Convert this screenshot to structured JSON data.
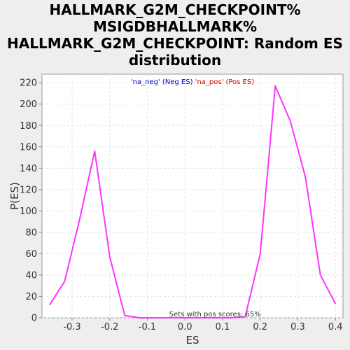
{
  "chart_data": {
    "type": "line",
    "title_lines": [
      "HALLMARK_G2M_CHECKPOINT%",
      "MSIGDBHALLMARK%",
      "HALLMARK_G2M_CHECKPOINT: Random ES",
      "distribution"
    ],
    "xlabel": "ES",
    "ylabel": "P(ES)",
    "xlim": [
      -0.38,
      0.42
    ],
    "ylim": [
      0,
      228
    ],
    "x_ticks": [
      -0.3,
      -0.2,
      -0.1,
      0.0,
      0.1,
      0.2,
      0.3,
      0.4
    ],
    "x_tick_labels": [
      "-0.3",
      "-0.2",
      "-0.1",
      "0.0",
      "0.1",
      "0.2",
      "0.3",
      "0.4"
    ],
    "y_ticks": [
      0,
      20,
      40,
      60,
      80,
      100,
      120,
      140,
      160,
      180,
      200,
      220
    ],
    "y_tick_labels": [
      "0",
      "20",
      "40",
      "60",
      "80",
      "100",
      "120",
      "140",
      "160",
      "180",
      "200",
      "220"
    ],
    "grid": true,
    "legend": {
      "placement": "top-center",
      "entries": [
        {
          "text": "'na_neg' (Neg ES)",
          "color": "#0000cc"
        },
        {
          "text": "'na_pos' (Pos ES)",
          "color": "#cc0000"
        }
      ]
    },
    "annotation": "Sets with pos scores: 65%",
    "series": [
      {
        "color": "#ff33ff",
        "x": [
          -0.36,
          -0.32,
          -0.28,
          -0.24,
          -0.2,
          -0.16,
          -0.12,
          -0.08,
          -0.04,
          0.0,
          0.04,
          0.08,
          0.12,
          0.16,
          0.2,
          0.24,
          0.28,
          0.32,
          0.36,
          0.4
        ],
        "y": [
          12,
          34,
          92,
          156,
          57,
          2,
          0,
          0,
          0,
          0,
          0,
          0,
          0,
          1,
          60,
          217,
          184,
          132,
          40,
          13
        ]
      }
    ]
  }
}
